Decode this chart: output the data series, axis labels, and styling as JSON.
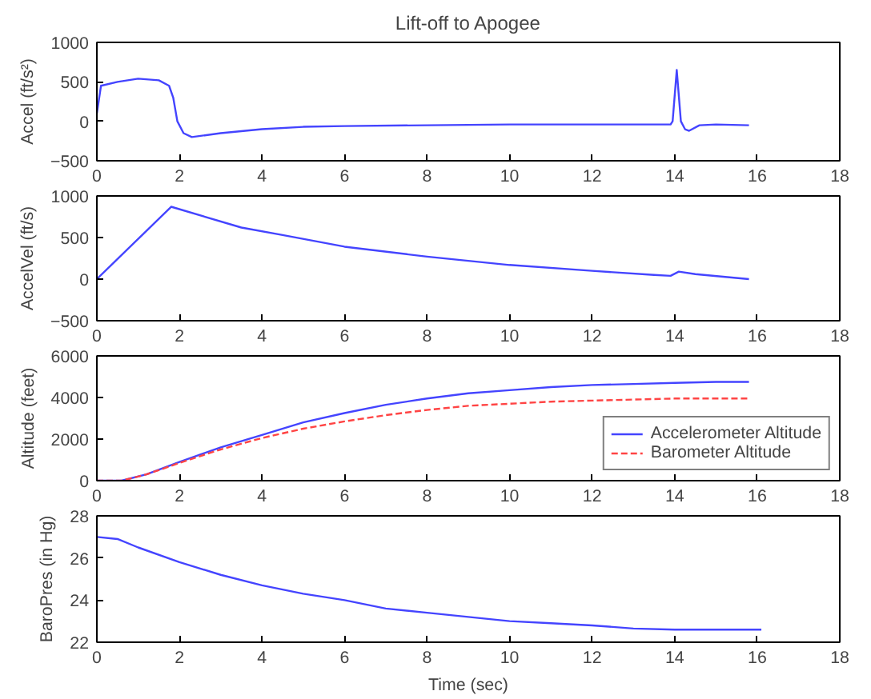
{
  "chart_data": [
    {
      "type": "line",
      "title": "Lift-off to Apogee",
      "ylabel": "Accel (ft/s²)",
      "xlim": [
        0,
        18
      ],
      "xticks": [
        0,
        2,
        4,
        6,
        8,
        10,
        12,
        14,
        16,
        18
      ],
      "ylim": [
        -500,
        1000
      ],
      "yticks": [
        -500,
        0,
        500,
        1000
      ],
      "grid": false,
      "legend": false,
      "x": [
        0,
        0.1,
        0.5,
        1.0,
        1.5,
        1.75,
        1.85,
        1.95,
        2.1,
        2.3,
        3,
        4,
        5,
        6,
        8,
        10,
        12,
        13.9,
        13.95,
        14.05,
        14.15,
        14.25,
        14.35,
        14.6,
        15,
        15.8
      ],
      "series": [
        {
          "color": "#4444ff",
          "values": [
            100,
            450,
            500,
            540,
            520,
            450,
            300,
            0,
            -150,
            -200,
            -150,
            -100,
            -70,
            -60,
            -50,
            -40,
            -40,
            -40,
            0,
            650,
            0,
            -100,
            -120,
            -50,
            -40,
            -50
          ]
        }
      ]
    },
    {
      "type": "line",
      "ylabel": "AccelVel (ft/s)",
      "xlim": [
        0,
        18
      ],
      "xticks": [
        0,
        2,
        4,
        6,
        8,
        10,
        12,
        14,
        16,
        18
      ],
      "ylim": [
        -500,
        1000
      ],
      "yticks": [
        -500,
        0,
        500,
        1000
      ],
      "grid": false,
      "legend": false,
      "x": [
        0,
        1.8,
        3.5,
        4.5,
        6,
        8,
        10,
        12,
        13.5,
        13.9,
        14.1,
        14.5,
        15.8
      ],
      "series": [
        {
          "color": "#4444ff",
          "values": [
            0,
            870,
            620,
            530,
            390,
            270,
            170,
            100,
            50,
            40,
            90,
            60,
            0
          ]
        }
      ]
    },
    {
      "type": "line",
      "ylabel": "Altitude (feet)",
      "xlim": [
        0,
        18
      ],
      "xticks": [
        0,
        2,
        4,
        6,
        8,
        10,
        12,
        14,
        16,
        18
      ],
      "ylim": [
        0,
        6000
      ],
      "yticks": [
        0,
        2000,
        4000,
        6000
      ],
      "grid": false,
      "legend": "bottom right",
      "x": [
        0,
        0.6,
        1.2,
        2,
        3,
        4,
        5,
        6,
        7,
        8,
        9,
        10,
        11,
        12,
        13,
        14,
        15,
        15.8
      ],
      "series": [
        {
          "name": "Accelerometer Altitude",
          "color": "#4444ff",
          "line_style": "solid",
          "values": [
            0,
            0,
            300,
            900,
            1600,
            2200,
            2800,
            3250,
            3650,
            3950,
            4200,
            4350,
            4500,
            4600,
            4650,
            4700,
            4750,
            4750
          ]
        },
        {
          "name": "Barometer Altitude",
          "color": "#ff4444",
          "line_style": "dashed",
          "values": [
            0,
            0,
            300,
            850,
            1500,
            2050,
            2500,
            2850,
            3150,
            3400,
            3600,
            3700,
            3800,
            3850,
            3900,
            3950,
            3950,
            3950
          ]
        }
      ]
    },
    {
      "type": "line",
      "ylabel": "BaroPres (in Hg)",
      "xlabel": "Time (sec)",
      "xlim": [
        0,
        18
      ],
      "xticks": [
        0,
        2,
        4,
        6,
        8,
        10,
        12,
        14,
        16,
        18
      ],
      "ylim": [
        22,
        28
      ],
      "yticks": [
        22,
        24,
        26,
        28
      ],
      "grid": false,
      "legend": false,
      "x": [
        0,
        0.5,
        1,
        2,
        3,
        4,
        5,
        6,
        7,
        8,
        9,
        10,
        11,
        12,
        13,
        14,
        15,
        16.1
      ],
      "series": [
        {
          "color": "#4444ff",
          "values": [
            27,
            26.9,
            26.5,
            25.8,
            25.2,
            24.7,
            24.3,
            24,
            23.6,
            23.4,
            23.2,
            23,
            22.9,
            22.8,
            22.65,
            22.6,
            22.6,
            22.6
          ]
        }
      ]
    }
  ]
}
